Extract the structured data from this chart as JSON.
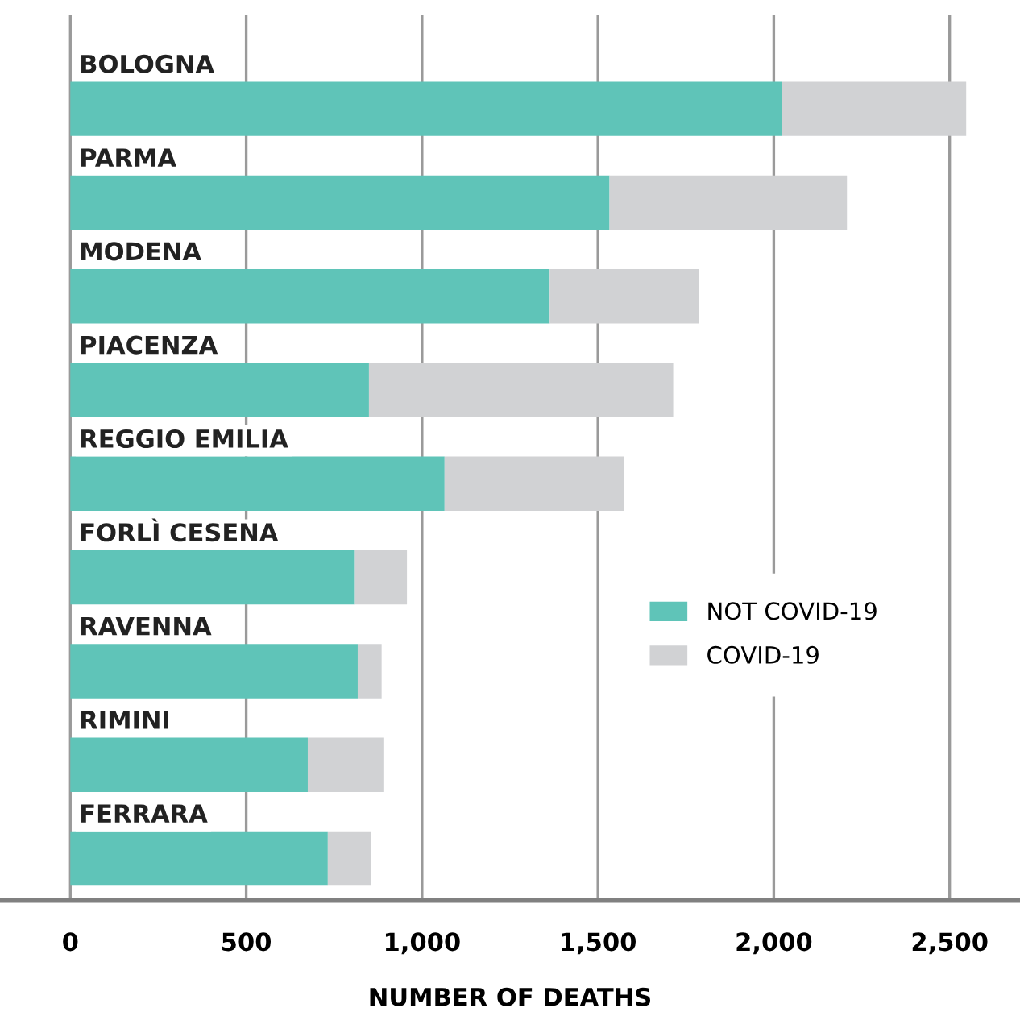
{
  "chart_data": {
    "type": "bar",
    "orientation": "horizontal",
    "stacked": true,
    "xlabel": "NUMBER OF DEATHS",
    "categories": [
      "BOLOGNA",
      "PARMA",
      "MODENA",
      "PIACENZA",
      "REGGIO EMILIA",
      "FORLÌ CESENA",
      "RAVENNA",
      "RIMINI",
      "FERRARA"
    ],
    "series": [
      {
        "name": "NOT COVID-19",
        "color": "#5fc4b8",
        "values": [
          2024,
          1533,
          1363,
          849,
          1064,
          807,
          817,
          675,
          732
        ]
      },
      {
        "name": "COVID-19",
        "color": "#d1d2d4",
        "values": [
          523,
          675,
          425,
          865,
          509,
          150,
          68,
          215,
          124
        ]
      }
    ],
    "xlim": [
      -200,
      2700
    ],
    "xticks": [
      0,
      500,
      {
        "value": 1000,
        "label": "1,000"
      },
      {
        "value": 1500,
        "label": "1,500"
      },
      {
        "value": 2000,
        "label": "2,000"
      },
      {
        "value": 2500,
        "label": "2,500"
      }
    ],
    "grid": "x",
    "legend": "right"
  }
}
